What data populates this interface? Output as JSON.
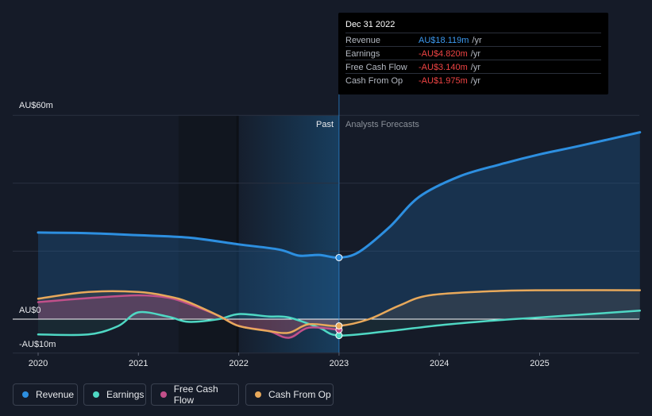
{
  "chart_data": {
    "type": "line",
    "title": "",
    "y_axis": {
      "min": -10,
      "max": 60,
      "unit": "AU$m",
      "tick_labels": [
        "AU$60m",
        "AU$0",
        "-AU$10m"
      ]
    },
    "x_axis": {
      "min": 2019.8,
      "max": 2026.0,
      "tick_labels": [
        "2020",
        "2021",
        "2022",
        "2023",
        "2024",
        "2025"
      ],
      "ticks": [
        2020,
        2021,
        2022,
        2023,
        2024,
        2025
      ]
    },
    "divider_label_past": "Past",
    "divider_label_forecast": "Analysts Forecasts",
    "past_end_x": 2023.0,
    "series": [
      {
        "name": "Revenue",
        "color": "#2d8fe0",
        "points": [
          [
            2020.0,
            25.5
          ],
          [
            2020.5,
            25.3
          ],
          [
            2021.0,
            24.7
          ],
          [
            2021.5,
            24.0
          ],
          [
            2022.0,
            22.0
          ],
          [
            2022.4,
            20.5
          ],
          [
            2022.6,
            18.7
          ],
          [
            2022.8,
            18.9
          ],
          [
            2023.0,
            18.119
          ],
          [
            2023.2,
            19.8
          ],
          [
            2023.5,
            27.0
          ],
          [
            2023.8,
            36.0
          ],
          [
            2024.2,
            42.0
          ],
          [
            2024.6,
            45.5
          ],
          [
            2025.0,
            48.5
          ],
          [
            2025.4,
            51.0
          ],
          [
            2026.0,
            55.0
          ]
        ]
      },
      {
        "name": "Earnings",
        "color": "#4fd8c4",
        "points": [
          [
            2020.0,
            -4.5
          ],
          [
            2020.5,
            -4.5
          ],
          [
            2020.8,
            -2.0
          ],
          [
            2021.0,
            2.0
          ],
          [
            2021.3,
            0.7
          ],
          [
            2021.5,
            -0.8
          ],
          [
            2021.8,
            0.0
          ],
          [
            2022.0,
            1.5
          ],
          [
            2022.3,
            0.8
          ],
          [
            2022.5,
            0.5
          ],
          [
            2022.8,
            -2.5
          ],
          [
            2023.0,
            -4.82
          ],
          [
            2023.5,
            -3.5
          ],
          [
            2024.0,
            -1.8
          ],
          [
            2024.5,
            -0.5
          ],
          [
            2025.0,
            0.5
          ],
          [
            2025.5,
            1.5
          ],
          [
            2026.0,
            2.5
          ]
        ]
      },
      {
        "name": "Free Cash Flow",
        "color": "#c2508a",
        "points": [
          [
            2020.0,
            5.0
          ],
          [
            2020.5,
            6.2
          ],
          [
            2021.0,
            7.0
          ],
          [
            2021.3,
            6.3
          ],
          [
            2021.5,
            4.5
          ],
          [
            2021.8,
            1.0
          ],
          [
            2022.0,
            -2.0
          ],
          [
            2022.3,
            -3.5
          ],
          [
            2022.5,
            -5.5
          ],
          [
            2022.7,
            -2.5
          ],
          [
            2023.0,
            -3.14
          ]
        ]
      },
      {
        "name": "Cash From Op",
        "color": "#e8a95b",
        "points": [
          [
            2020.0,
            6.0
          ],
          [
            2020.5,
            8.0
          ],
          [
            2021.0,
            8.0
          ],
          [
            2021.3,
            6.7
          ],
          [
            2021.5,
            5.0
          ],
          [
            2021.8,
            1.0
          ],
          [
            2022.0,
            -2.0
          ],
          [
            2022.3,
            -3.5
          ],
          [
            2022.5,
            -4.0
          ],
          [
            2022.7,
            -1.5
          ],
          [
            2023.0,
            -1.975
          ],
          [
            2023.3,
            0.0
          ],
          [
            2023.6,
            4.0
          ],
          [
            2023.9,
            7.0
          ],
          [
            2024.5,
            8.2
          ],
          [
            2025.0,
            8.5
          ],
          [
            2026.0,
            8.5
          ]
        ]
      }
    ]
  },
  "tooltip": {
    "date": "Dec 31 2022",
    "rows": [
      {
        "label": "Revenue",
        "value": "AU$18.119m",
        "unit": "/yr",
        "color": "#3d9af0"
      },
      {
        "label": "Earnings",
        "value": "-AU$4.820m",
        "unit": "/yr",
        "color": "#ef4444"
      },
      {
        "label": "Free Cash Flow",
        "value": "-AU$3.140m",
        "unit": "/yr",
        "color": "#ef4444"
      },
      {
        "label": "Cash From Op",
        "value": "-AU$1.975m",
        "unit": "/yr",
        "color": "#ef4444"
      }
    ]
  },
  "legend": {
    "items": [
      {
        "label": "Revenue",
        "color": "#2d8fe0"
      },
      {
        "label": "Earnings",
        "color": "#4fd8c4"
      },
      {
        "label": "Free Cash Flow",
        "color": "#c2508a"
      },
      {
        "label": "Cash From Op",
        "color": "#e8a95b"
      }
    ]
  }
}
